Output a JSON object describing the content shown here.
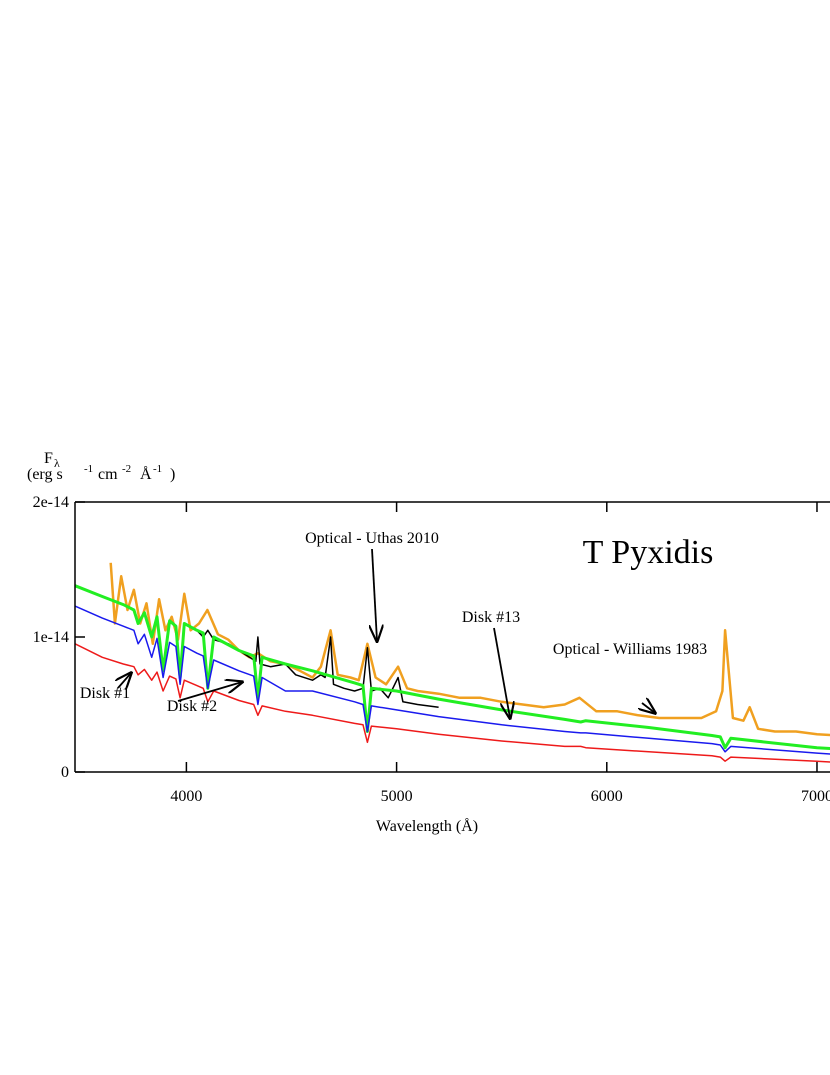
{
  "chart_data": {
    "type": "line",
    "title": "T Pyxidis",
    "x_label": "Wavelength (Å)",
    "y_label": {
      "symbol": "F",
      "subscript": "λ",
      "open": "(erg s",
      "exp1": "-1",
      "mid": "cm",
      "exp2": "-2",
      "unit": "Å",
      "exp3": "-1",
      "close": ")"
    },
    "xlim": [
      3470,
      7100
    ],
    "xticks": [
      4000,
      5000,
      6000,
      7000
    ],
    "ylim": [
      0,
      2e-14
    ],
    "yticks": [
      0,
      1e-14,
      2e-14
    ],
    "annotations": [
      "Optical - Uthas 2010",
      "Disk #13",
      "Optical - Williams 1983",
      "Disk #1",
      "Disk #2"
    ],
    "series": [
      {
        "color": "#f0a020",
        "width": 2.5,
        "x": [
          3640,
          3660,
          3690,
          3720,
          3750,
          3780,
          3810,
          3840,
          3870,
          3900,
          3930,
          3960,
          3990,
          4020,
          4060,
          4100,
          4150,
          4200,
          4250,
          4300,
          4340,
          4400,
          4470,
          4540,
          4600,
          4640,
          4686,
          4720,
          4780,
          4820,
          4861,
          4900,
          4950,
          5007,
          5050,
          5100,
          5200,
          5300,
          5400,
          5500,
          5600,
          5700,
          5800,
          5870,
          5950,
          6050,
          6150,
          6250,
          6350,
          6450,
          6520,
          6550,
          6563,
          6580,
          6600,
          6650,
          6680,
          6720,
          6800,
          6900,
          7000,
          7100
        ],
        "values": [
          1.55e-14,
          1.1e-14,
          1.45e-14,
          1.2e-14,
          1.35e-14,
          1.1e-14,
          1.25e-14,
          9.5e-15,
          1.28e-14,
          1.05e-14,
          1.15e-14,
          9.8e-15,
          1.32e-14,
          1.05e-14,
          1.1e-14,
          1.2e-14,
          1.02e-14,
          9.8e-15,
          9e-15,
          8.5e-15,
          8.8e-15,
          8.2e-15,
          8e-15,
          7.5e-15,
          7e-15,
          7.8e-15,
          1.05e-14,
          7.2e-15,
          7e-15,
          6.8e-15,
          9.5e-15,
          7e-15,
          6.5e-15,
          7.8e-15,
          6.2e-15,
          6e-15,
          5.8e-15,
          5.5e-15,
          5.5e-15,
          5.2e-15,
          5e-15,
          4.8e-15,
          5e-15,
          5.5e-15,
          4.5e-15,
          4.5e-15,
          4.2e-15,
          4e-15,
          4e-15,
          4e-15,
          4.5e-15,
          6e-15,
          1.05e-14,
          7.5e-15,
          4e-15,
          3.8e-15,
          4.8e-15,
          3.2e-15,
          3e-15,
          3e-15,
          2.8e-15,
          2.7e-15
        ]
      },
      {
        "color": "#000000",
        "width": 1.5,
        "x": [
          4050,
          4080,
          4102,
          4130,
          4200,
          4250,
          4300,
          4330,
          4340,
          4350,
          4400,
          4471,
          4520,
          4600,
          4640,
          4660,
          4686,
          4700,
          4750,
          4800,
          4840,
          4861,
          4880,
          4920,
          4960,
          5007,
          5030,
          5100,
          5200
        ],
        "values": [
          1.05e-14,
          1e-14,
          1.05e-14,
          9.8e-15,
          9.5e-15,
          9e-15,
          8.5e-15,
          8.2e-15,
          1e-14,
          8e-15,
          7.8e-15,
          8e-15,
          7.2e-15,
          6.8e-15,
          7.2e-15,
          7e-15,
          1e-14,
          6.5e-15,
          6.2e-15,
          6e-15,
          6.2e-15,
          9.2e-15,
          6e-15,
          6.2e-15,
          5.5e-15,
          7e-15,
          5.2e-15,
          5e-15,
          4.8e-15
        ]
      },
      {
        "color": "#22ee22",
        "width": 3,
        "x": [
          3470,
          3600,
          3700,
          3750,
          3770,
          3800,
          3835,
          3860,
          3889,
          3920,
          3950,
          3970,
          3990,
          4050,
          4080,
          4102,
          4130,
          4250,
          4320,
          4340,
          4360,
          4471,
          4600,
          4800,
          4840,
          4861,
          4880,
          5000,
          5200,
          5500,
          5800,
          5876,
          5900,
          6200,
          6500,
          6540,
          6563,
          6590,
          7000,
          7100
        ],
        "values": [
          1.38e-14,
          1.3e-14,
          1.24e-14,
          1.2e-14,
          1.1e-14,
          1.18e-14,
          1e-14,
          1.15e-14,
          7.5e-15,
          1.12e-14,
          1.08e-14,
          7e-15,
          1.1e-14,
          1.05e-14,
          1.03e-14,
          6.2e-15,
          1e-14,
          9e-15,
          8.6e-15,
          5.5e-15,
          8.5e-15,
          8e-15,
          7.5e-15,
          6.6e-15,
          6.4e-15,
          3e-15,
          6.2e-15,
          6e-15,
          5.4e-15,
          4.6e-15,
          3.9e-15,
          3.7e-15,
          3.8e-15,
          3.3e-15,
          2.7e-15,
          2.6e-15,
          1.8e-15,
          2.5e-15,
          1.8e-15,
          1.7e-15
        ]
      },
      {
        "color": "#1a1aee",
        "width": 1.5,
        "x": [
          3470,
          3600,
          3700,
          3750,
          3770,
          3800,
          3835,
          3860,
          3889,
          3920,
          3950,
          3970,
          3990,
          4050,
          4080,
          4102,
          4130,
          4250,
          4320,
          4340,
          4360,
          4471,
          4600,
          4800,
          4840,
          4861,
          4880,
          5000,
          5200,
          5500,
          5800,
          5876,
          5900,
          6200,
          6500,
          6540,
          6563,
          6590,
          7000,
          7100
        ],
        "values": [
          1.23e-14,
          1.14e-14,
          1.08e-14,
          1.05e-14,
          9.5e-15,
          1.02e-14,
          8.5e-15,
          9.9e-15,
          7e-15,
          9.6e-15,
          9.3e-15,
          6.5e-15,
          9.3e-15,
          8.8e-15,
          8.6e-15,
          6.2e-15,
          8.3e-15,
          7.5e-15,
          7.1e-15,
          5e-15,
          7e-15,
          6e-15,
          6e-15,
          5.2e-15,
          5e-15,
          3e-15,
          4.9e-15,
          4.6e-15,
          4.1e-15,
          3.5e-15,
          3e-15,
          2.9e-15,
          2.9e-15,
          2.5e-15,
          2.1e-15,
          2e-15,
          1.5e-15,
          1.9e-15,
          1.4e-15,
          1.3e-15
        ]
      },
      {
        "color": "#ee1a1a",
        "width": 1.5,
        "x": [
          3470,
          3600,
          3700,
          3750,
          3770,
          3800,
          3835,
          3860,
          3889,
          3920,
          3950,
          3970,
          3990,
          4050,
          4080,
          4102,
          4130,
          4250,
          4320,
          4340,
          4360,
          4471,
          4600,
          4800,
          4840,
          4861,
          4880,
          5000,
          5200,
          5500,
          5800,
          5876,
          5900,
          6200,
          6500,
          6540,
          6563,
          6590,
          7000,
          7100
        ],
        "values": [
          9.5e-15,
          8.5e-15,
          8e-15,
          7.8e-15,
          7.2e-15,
          7.6e-15,
          6.8e-15,
          7.4e-15,
          6e-15,
          7.1e-15,
          6.9e-15,
          5.5e-15,
          6.8e-15,
          6.4e-15,
          6.2e-15,
          5.2e-15,
          6e-15,
          5.3e-15,
          5e-15,
          4.2e-15,
          4.9e-15,
          4.5e-15,
          4.2e-15,
          3.6e-15,
          3.5e-15,
          2.2e-15,
          3.4e-15,
          3.2e-15,
          2.8e-15,
          2.3e-15,
          1.9e-15,
          1.9e-15,
          1.8e-15,
          1.5e-15,
          1.2e-15,
          1.1e-15,
          8e-16,
          1.1e-15,
          8e-16,
          7e-16
        ]
      }
    ]
  }
}
